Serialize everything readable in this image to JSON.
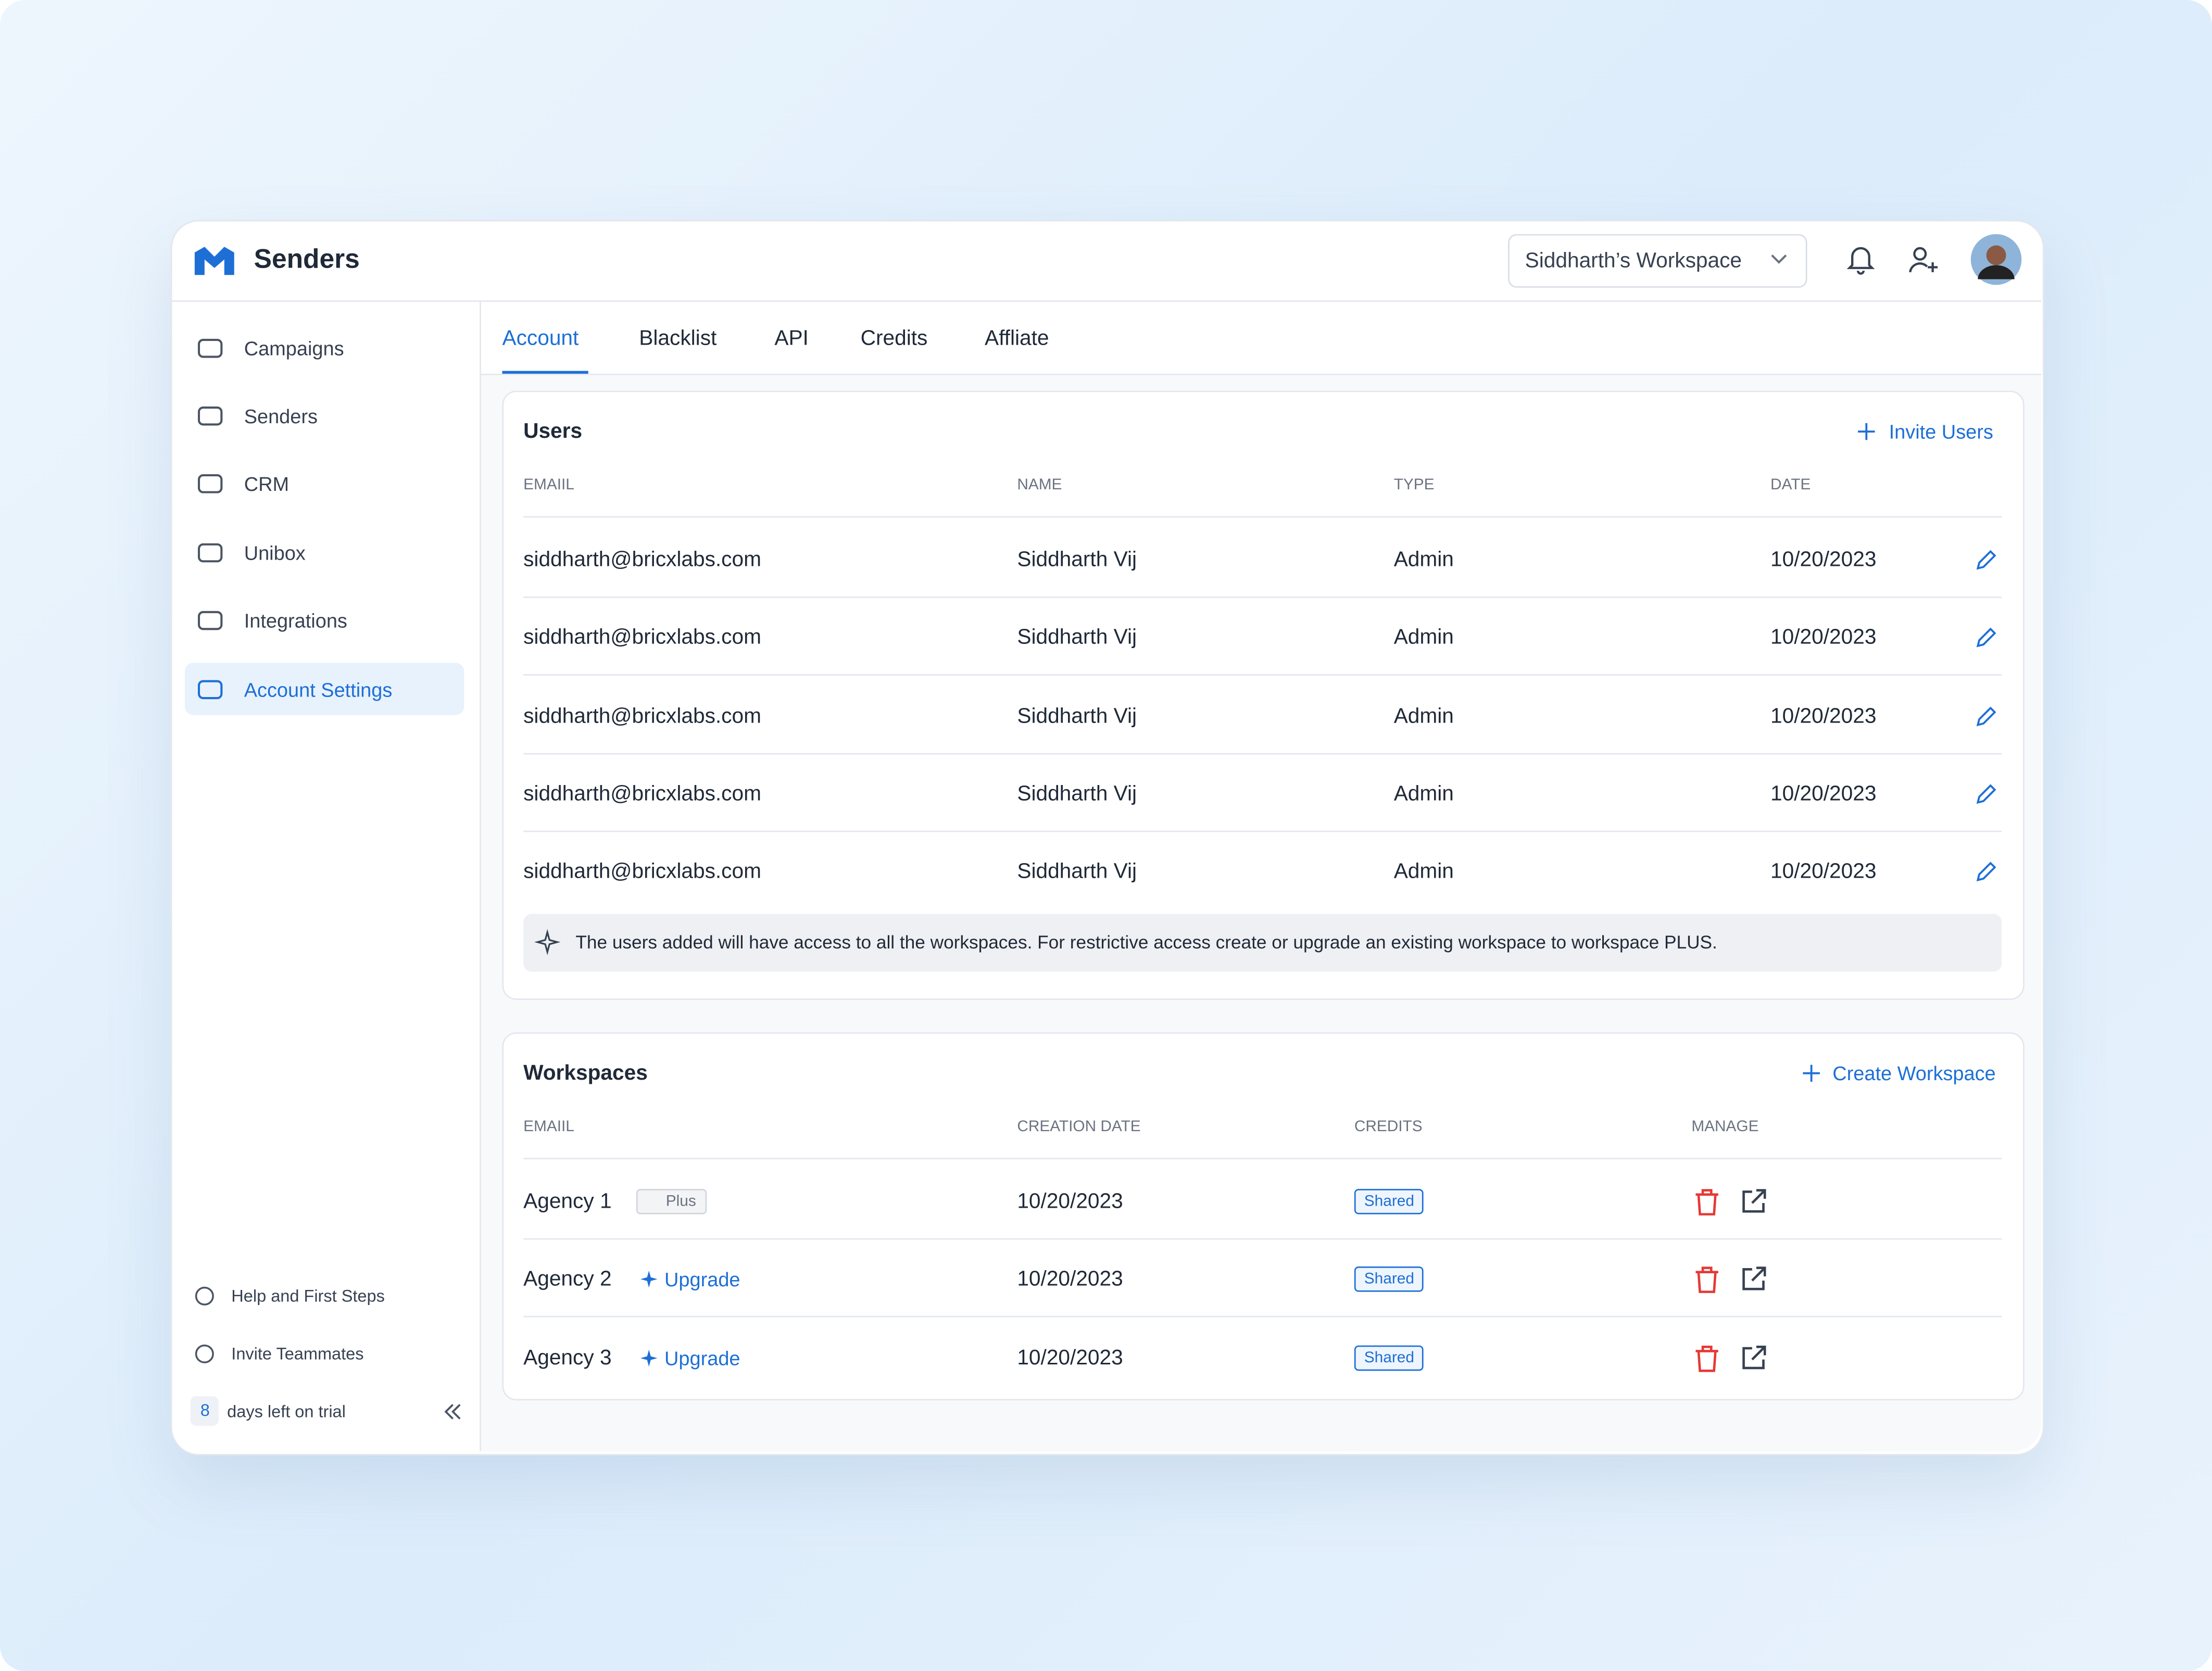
{
  "header": {
    "title": "Senders",
    "workspace": "Siddharth’s Workspace"
  },
  "nav": [
    "Campaigns",
    "Senders",
    "CRM",
    "Unibox",
    "Integrations",
    "Account Settings"
  ],
  "footer_nav": [
    "Help and First Steps",
    "Invite Teammates"
  ],
  "trial": {
    "days": 8,
    "text": "days left on trial"
  },
  "tabs": [
    "Account",
    "Blacklist",
    "API",
    "Credits",
    "Affliate"
  ],
  "users": {
    "title": "Users",
    "action": "Invite Users",
    "columns": [
      "EMAIIL",
      "NAME",
      "TYPE",
      "DATE"
    ],
    "rows": [
      [
        "siddharth@bricxlabs.com",
        "Siddharth Vij",
        "Admin",
        "10/20/2023"
      ],
      [
        "siddharth@bricxlabs.com",
        "Siddharth Vij",
        "Admin",
        "10/20/2023"
      ],
      [
        "siddharth@bricxlabs.com",
        "Siddharth Vij",
        "Admin",
        "10/20/2023"
      ],
      [
        "siddharth@bricxlabs.com",
        "Siddharth Vij",
        "Admin",
        "10/20/2023"
      ],
      [
        "siddharth@bricxlabs.com",
        "Siddharth Vij",
        "Admin",
        "10/20/2023"
      ]
    ],
    "note": "The users added will have access to all the workspaces. For restrictive access create or upgrade an existing workspace to workspace PLUS."
  },
  "workspaces": {
    "title": "Workspaces",
    "action": "Create Workspace",
    "columns": [
      "EMAIIL",
      "CREATION DATE",
      "CREDITS",
      "MANAGE"
    ],
    "rows": [
      {
        "name": "Agency 1",
        "badge": "Plus",
        "date": "10/20/2023",
        "credits": "Shared"
      },
      {
        "name": "Agency 2",
        "upgrade": "Upgrade",
        "date": "10/20/2023",
        "credits": "Shared"
      },
      {
        "name": "Agency 3",
        "upgrade": "Upgrade",
        "date": "10/20/2023",
        "credits": "Shared"
      }
    ]
  }
}
